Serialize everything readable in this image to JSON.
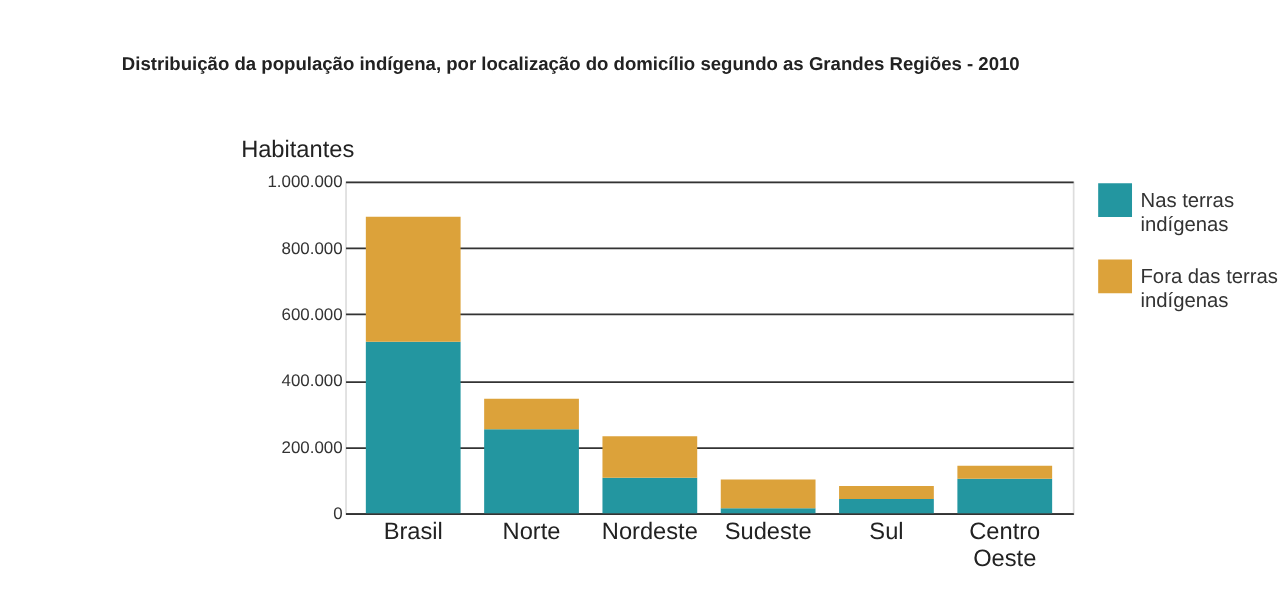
{
  "chart_data": {
    "type": "bar",
    "title": "Distribuição da população indígena, por localização do domicílio segundo as Grandes Regiões - 2010",
    "ylabel": "Habitantes",
    "categories": [
      "Brasil",
      "Norte",
      "Nordeste",
      "Sudeste",
      "Sul",
      "Centro Oeste"
    ],
    "series": [
      {
        "name": "Nas terras indígenas",
        "color": "#2396a0",
        "values": [
          517000,
          253000,
          107000,
          15000,
          43000,
          104000
        ]
      },
      {
        "name": "Fora das terras indígenas",
        "color": "#dca23a",
        "values": [
          377000,
          92000,
          125000,
          87000,
          39000,
          39000
        ]
      }
    ],
    "stacked": true,
    "ylim": [
      0,
      1000000
    ],
    "yticks": [
      {
        "value": 0,
        "label": "0"
      },
      {
        "value": 200000,
        "label": "200.000"
      },
      {
        "value": 400000,
        "label": "400.000"
      },
      {
        "value": 600000,
        "label": "600.000"
      },
      {
        "value": 800000,
        "label": "800.000"
      },
      {
        "value": 1000000,
        "label": "1.000.000"
      }
    ],
    "grid": "y",
    "legend": "right"
  }
}
